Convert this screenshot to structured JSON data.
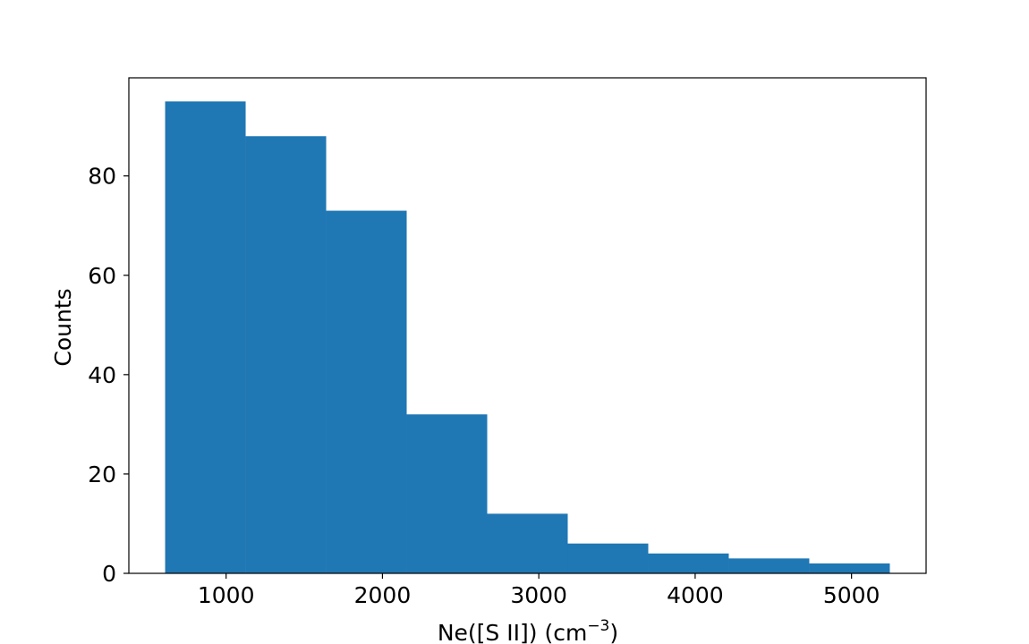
{
  "chart_data": {
    "type": "bar",
    "title": "",
    "xlabel": "Ne([S II]) (cm",
    "xlabel_superscript": "−3",
    "xlabel_suffix": ")",
    "ylabel": "Counts",
    "bins": [
      {
        "x0": 610,
        "x1": 1125,
        "count": 95
      },
      {
        "x0": 1125,
        "x1": 1640,
        "count": 88
      },
      {
        "x0": 1640,
        "x1": 2155,
        "count": 73
      },
      {
        "x0": 2155,
        "x1": 2670,
        "count": 32
      },
      {
        "x0": 2670,
        "x1": 3185,
        "count": 12
      },
      {
        "x0": 3185,
        "x1": 3700,
        "count": 6
      },
      {
        "x0": 3700,
        "x1": 4215,
        "count": 4
      },
      {
        "x0": 4215,
        "x1": 4730,
        "count": 3
      },
      {
        "x0": 4730,
        "x1": 5245,
        "count": 2
      }
    ],
    "xlim": [
      378,
      5477
    ],
    "ylim": [
      0,
      99.75
    ],
    "xticks": [
      1000,
      2000,
      3000,
      4000,
      5000
    ],
    "yticks": [
      0,
      20,
      40,
      60,
      80
    ],
    "xtick_labels": [
      "1000",
      "2000",
      "3000",
      "4000",
      "5000"
    ],
    "ytick_labels": [
      "0",
      "20",
      "40",
      "60",
      "80"
    ],
    "bar_color": "#1f77b4",
    "grid": false,
    "legend": "none"
  }
}
